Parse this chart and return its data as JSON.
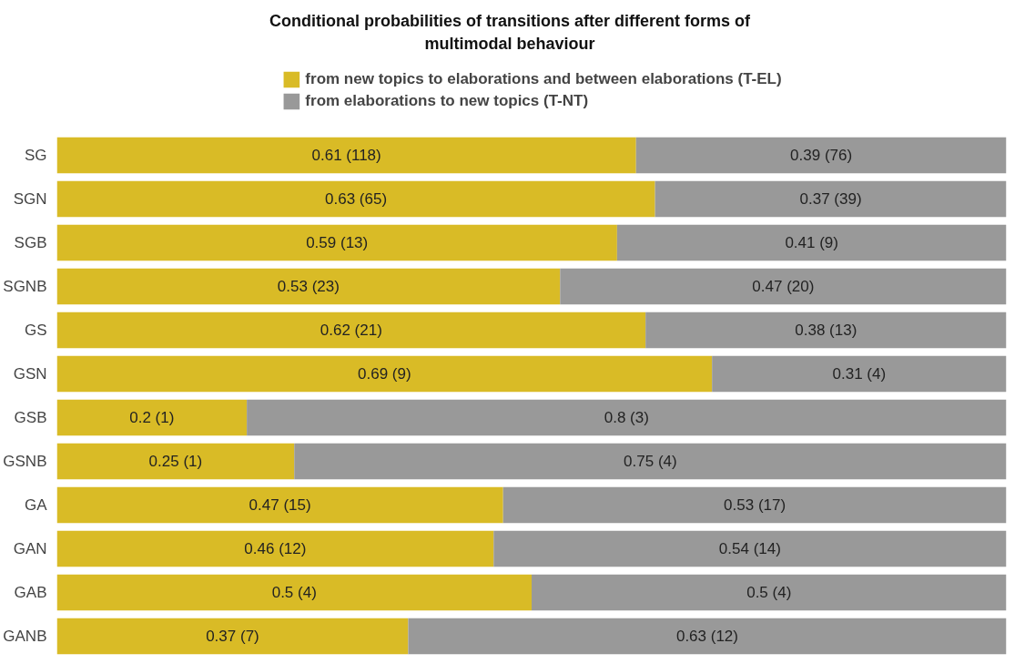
{
  "chart_data": {
    "type": "bar",
    "orientation": "horizontal",
    "stacked": true,
    "title": "Conditional probabilities of transitions after different forms of multimodal behaviour",
    "categories": [
      "SG",
      "SGN",
      "SGB",
      "SGNB",
      "GS",
      "GSN",
      "GSB",
      "GSNB",
      "GA",
      "GAN",
      "GAB",
      "GANB"
    ],
    "series": [
      {
        "name": "from new topics to elaborations and between elaborations (T-EL)",
        "color": "#d9bb26",
        "values": [
          0.61,
          0.63,
          0.59,
          0.53,
          0.62,
          0.69,
          0.2,
          0.25,
          0.47,
          0.46,
          0.5,
          0.37
        ],
        "value_labels": [
          "0.61 (118)",
          "0.63 (65)",
          "0.59 (13)",
          "0.53 (23)",
          "0.62 (21)",
          "0.69 (9)",
          "0.2 (1)",
          "0.25 (1)",
          "0.47 (15)",
          "0.46 (12)",
          "0.5 (4)",
          "0.37 (7)"
        ]
      },
      {
        "name": "from elaborations to new topics (T-NT)",
        "color": "#999999",
        "values": [
          0.39,
          0.37,
          0.41,
          0.47,
          0.38,
          0.31,
          0.8,
          0.75,
          0.53,
          0.54,
          0.5,
          0.63
        ],
        "value_labels": [
          "0.39 (76)",
          "0.37 (39)",
          "0.41 (9)",
          "0.47 (20)",
          "0.38 (13)",
          "0.31 (4)",
          "0.8 (3)",
          "0.75 (4)",
          "0.53 (17)",
          "0.54 (14)",
          "0.5 (4)",
          "0.63 (12)"
        ]
      }
    ],
    "xlim": [
      0,
      1
    ],
    "tick_labels": "y",
    "grid": false,
    "legend": "top"
  }
}
